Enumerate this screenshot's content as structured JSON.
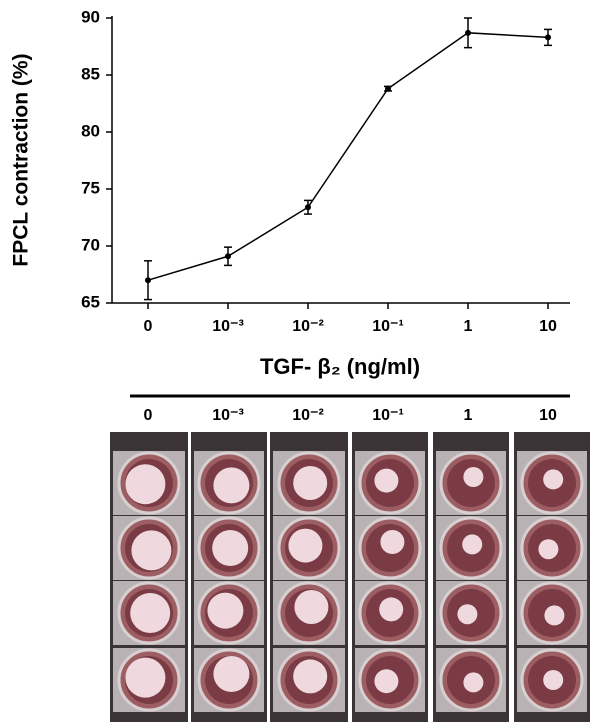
{
  "chart_data": {
    "type": "line",
    "y_label": "FPCL contraction (%)",
    "x_label": "TGF- β₂ (ng/ml)",
    "categories": [
      "0",
      "10⁻³",
      "10⁻²",
      "10⁻¹",
      "1",
      "10"
    ],
    "values": [
      67.0,
      69.1,
      73.4,
      83.8,
      88.7,
      88.3
    ],
    "errors": [
      1.7,
      0.8,
      0.6,
      0.2,
      1.3,
      0.7
    ],
    "color": "#000000",
    "ylim": [
      65,
      90
    ],
    "yticks": [
      65,
      70,
      75,
      80,
      85,
      90
    ],
    "grid": false
  }
}
